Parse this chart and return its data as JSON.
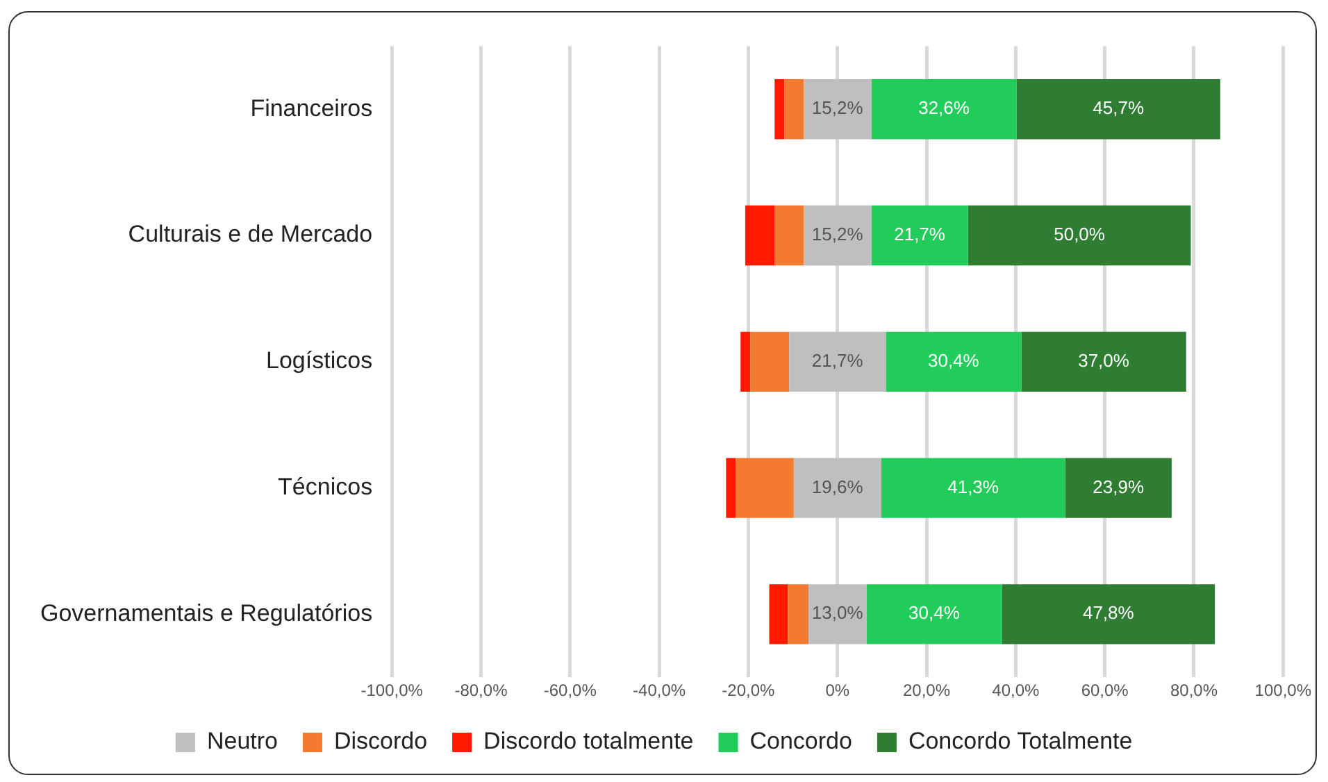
{
  "chart_data": {
    "type": "bar",
    "orientation": "horizontal",
    "categories": [
      "Financeiros",
      "Culturais e de Mercado",
      "Logísticos",
      "Técnicos",
      "Governamentais e Regulatórios"
    ],
    "series": [
      {
        "name": "Neutro",
        "color": "#bfbfbf",
        "values": [
          15.2,
          15.2,
          21.7,
          19.6,
          13.0
        ],
        "base": [
          -7.6,
          -7.6,
          -10.85,
          -9.8,
          -6.5
        ],
        "value_labels": [
          "15,2%",
          "15,2%",
          "21,7%",
          "19,6%",
          "13,0%"
        ]
      },
      {
        "name": "Discordo",
        "color": "#f47a30",
        "values": [
          4.3,
          6.5,
          8.7,
          13.0,
          4.6
        ],
        "base": [
          -11.9,
          -14.1,
          -19.55,
          -22.8,
          -11.1
        ]
      },
      {
        "name": "Discordo totalmente",
        "color": "#ff1a00",
        "values": [
          2.2,
          6.6,
          2.2,
          2.2,
          4.2
        ],
        "base": [
          -14.1,
          -20.7,
          -21.75,
          -25.0,
          -15.3
        ]
      },
      {
        "name": "Concordo",
        "color": "#22cc5a",
        "values": [
          32.6,
          21.7,
          30.4,
          41.3,
          30.4
        ],
        "base": [
          7.6,
          7.6,
          10.85,
          9.8,
          6.5
        ],
        "value_labels": [
          "32,6%",
          "21,7%",
          "30,4%",
          "41,3%",
          "30,4%"
        ]
      },
      {
        "name": "Concordo Totalmente",
        "color": "#2e7d32",
        "values": [
          45.7,
          50.0,
          37.0,
          23.9,
          47.8
        ],
        "base": [
          40.2,
          29.3,
          41.25,
          51.1,
          36.9
        ],
        "value_labels": [
          "45,7%",
          "50,0%",
          "37,0%",
          "23,9%",
          "47,8%"
        ]
      }
    ],
    "xlim": [
      -100,
      100
    ],
    "xticks": [
      {
        "value": -100,
        "label": "-100,0%"
      },
      {
        "value": -80,
        "label": "-80,0%"
      },
      {
        "value": -60,
        "label": "-60,0%"
      },
      {
        "value": -40,
        "label": "-40,0%"
      },
      {
        "value": -20,
        "label": "-20,0%"
      },
      {
        "value": 0,
        "label": "0%"
      },
      {
        "value": 20,
        "label": "20,0%"
      },
      {
        "value": 40,
        "label": "40,0%"
      },
      {
        "value": 60,
        "label": "60,0%"
      },
      {
        "value": 80,
        "label": "80,0%"
      },
      {
        "value": 100,
        "label": "100,0%"
      }
    ],
    "grid": "x",
    "legend": "bottom"
  }
}
